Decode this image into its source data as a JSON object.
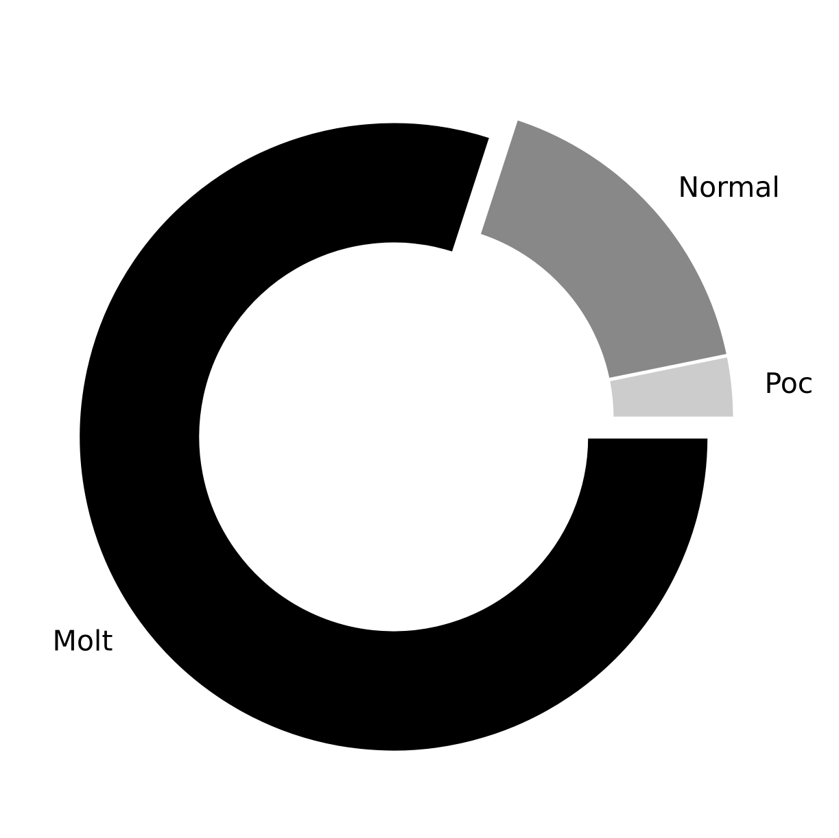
{
  "chart_data": {
    "type": "pie",
    "variant": "donut",
    "start_angle_deg": 0,
    "direction": "counterclockwise",
    "slices": [
      {
        "label": "Poc",
        "value": 3.2,
        "color": "#cccccc",
        "exploded": false
      },
      {
        "label": "Normal",
        "value": 16.8,
        "color": "#888888",
        "exploded": false
      },
      {
        "label": "Molt",
        "value": 80.0,
        "color": "#000000",
        "exploded": true
      }
    ],
    "separator_color": "#ffffff",
    "legend": "none"
  }
}
